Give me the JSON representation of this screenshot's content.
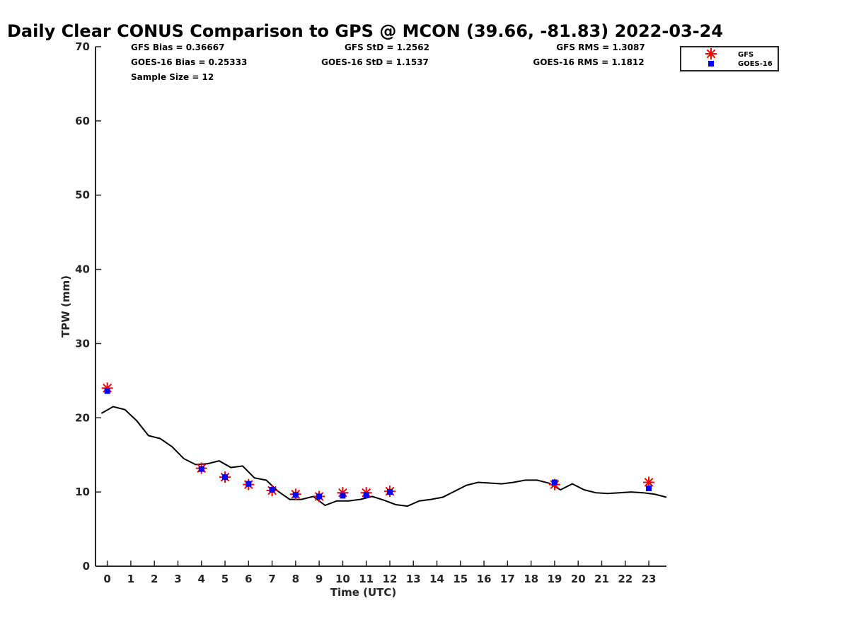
{
  "chart_data": {
    "type": "scatter",
    "title": "Daily Clear CONUS Comparison to GPS @ MCON (39.66, -81.83) 2022-03-24",
    "xlabel": "Time (UTC)",
    "ylabel": "TPW (mm)",
    "xlim": [
      -0.5,
      23.75
    ],
    "ylim": [
      0,
      70
    ],
    "x_ticks": [
      0,
      1,
      2,
      3,
      4,
      5,
      6,
      7,
      8,
      9,
      10,
      11,
      12,
      13,
      14,
      15,
      16,
      17,
      18,
      19,
      20,
      21,
      22,
      23
    ],
    "y_ticks": [
      0,
      10,
      20,
      30,
      40,
      50,
      60,
      70
    ],
    "grid": false,
    "legend_position": "top-right",
    "stats": [
      {
        "id": "gfs_bias",
        "text": "GFS Bias = 0.36667"
      },
      {
        "id": "goes_bias",
        "text": "GOES-16 Bias = 0.25333"
      },
      {
        "id": "sample",
        "text": "Sample Size = 12"
      },
      {
        "id": "gfs_std",
        "text": "GFS StD = 1.2562"
      },
      {
        "id": "goes_std",
        "text": "GOES-16 StD = 1.1537"
      },
      {
        "id": "gfs_rms",
        "text": "GFS RMS = 1.3087"
      },
      {
        "id": "goes_rms",
        "text": "GOES-16 RMS = 1.1812"
      }
    ],
    "series": [
      {
        "name": "GFS",
        "marker": "asterisk",
        "color": "#ff0000",
        "x": [
          0,
          4,
          5,
          6,
          7,
          8,
          9,
          10,
          11,
          12,
          19,
          23
        ],
        "y": [
          24.0,
          13.2,
          12.0,
          11.0,
          10.2,
          9.7,
          9.4,
          9.9,
          9.9,
          10.1,
          11.0,
          11.3
        ]
      },
      {
        "name": "GOES-16",
        "marker": "square",
        "color": "#0000ff",
        "x": [
          0,
          4,
          5,
          6,
          7,
          8,
          9,
          10,
          11,
          12,
          19,
          23
        ],
        "y": [
          23.6,
          13.1,
          12.0,
          11.1,
          10.3,
          9.6,
          9.4,
          9.5,
          9.6,
          10.0,
          11.3,
          10.5
        ]
      },
      {
        "marker": "line",
        "color": "#000000",
        "x": [
          -0.25,
          0.25,
          0.75,
          1.25,
          1.75,
          2.25,
          2.75,
          3.25,
          3.75,
          4.25,
          4.75,
          5.25,
          5.75,
          6.25,
          6.75,
          7.25,
          7.75,
          8.25,
          8.75,
          9.25,
          9.75,
          10.25,
          10.75,
          11.25,
          11.75,
          12.25,
          12.75,
          13.25,
          13.75,
          14.25,
          14.75,
          15.25,
          15.75,
          16.25,
          16.75,
          17.25,
          17.75,
          18.25,
          18.75,
          19.25,
          19.75,
          20.25,
          20.75,
          21.25,
          21.75,
          22.25,
          22.75,
          23.25,
          23.75
        ],
        "y": [
          20.6,
          21.5,
          21.1,
          19.6,
          17.6,
          17.2,
          16.1,
          14.5,
          13.7,
          13.8,
          14.2,
          13.3,
          13.5,
          11.9,
          11.6,
          10.1,
          9.0,
          9.0,
          9.4,
          8.2,
          8.8,
          8.8,
          9.0,
          9.4,
          8.9,
          8.3,
          8.1,
          8.8,
          9.0,
          9.3,
          10.1,
          10.9,
          11.3,
          11.2,
          11.1,
          11.3,
          11.6,
          11.6,
          11.2,
          10.3,
          11.1,
          10.3,
          9.9,
          9.8,
          9.9,
          10.0,
          9.9,
          9.7,
          9.3
        ]
      }
    ]
  }
}
